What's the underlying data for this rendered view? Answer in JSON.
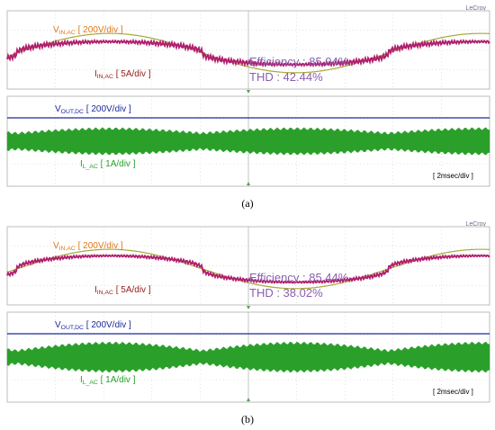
{
  "brand": "LeCroy",
  "colors": {
    "vin": "#a8a838",
    "iin": "#b0206e",
    "vout": "#1c2a9c",
    "il": "#2aa02a",
    "label_vin": "#e07818",
    "label_iin": "#9a2020",
    "label_vout": "#1c2a9c",
    "label_il": "#2aa02a",
    "metrics": "#8a5fb0",
    "grid": "#c8c8c8",
    "frame": "#bcbcbc"
  },
  "labels": {
    "vin": {
      "main": "V",
      "sub": "IN,AC",
      "scale": " [ 200V/div ]"
    },
    "iin": {
      "main": "I",
      "sub": "IN,AC",
      "scale": " [ 5A/div ]"
    },
    "vout": {
      "main": "V",
      "sub": "OUT,DC",
      "scale": " [ 200V/div ]"
    },
    "il": {
      "main": "I",
      "sub": "L_AC",
      "scale": " [ 1A/div ]"
    },
    "timebase": "[ 2msec/div ]"
  },
  "chart_data": [
    {
      "type": "line",
      "caption": "(a)",
      "timebase": "2 ms/div",
      "efficiency": "Efficiency : 85.04%",
      "thd": "THD : 42.44%",
      "efficiency_pct": 85.04,
      "thd_pct": 42.44,
      "series": [
        {
          "name": "V_IN,AC",
          "scale": "200 V/div",
          "amplitude_div": 0.95,
          "phase_deg": 0
        },
        {
          "name": "I_IN,AC",
          "scale": "5 A/div",
          "amplitude_div": 0.65,
          "distortion": "high"
        },
        {
          "name": "V_OUT,DC",
          "scale": "200 V/div",
          "level_div": 0.55
        },
        {
          "name": "I_L_AC",
          "scale": "1 A/div",
          "band_envelope": "rectified sine, ripple",
          "low_div": 0.75,
          "high_div": 1.2
        }
      ]
    },
    {
      "type": "line",
      "caption": "(b)",
      "timebase": "2 ms/div",
      "efficiency": "Efficiency : 85.44%",
      "thd": "THD : 38.02%",
      "efficiency_pct": 85.44,
      "thd_pct": 38.02,
      "series": [
        {
          "name": "V_IN,AC",
          "scale": "200 V/div",
          "amplitude_div": 0.95,
          "phase_deg": 0
        },
        {
          "name": "I_IN,AC",
          "scale": "5 A/div",
          "amplitude_div": 0.75,
          "distortion": "moderate"
        },
        {
          "name": "V_OUT,DC",
          "scale": "200 V/div",
          "level_div": 0.55
        },
        {
          "name": "I_L_AC",
          "scale": "1 A/div",
          "band_envelope": "rectified sine, ripple",
          "low_div": 0.6,
          "high_div": 1.35
        }
      ]
    }
  ]
}
